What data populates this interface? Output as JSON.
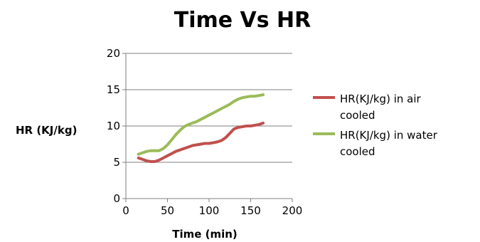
{
  "chart_data": {
    "type": "line",
    "title": "Time Vs HR",
    "xlabel": "Time (min)",
    "ylabel": "HR (KJ/kg)",
    "xlim": [
      0,
      200
    ],
    "ylim": [
      0,
      20
    ],
    "xticks": [
      0,
      50,
      100,
      150,
      200
    ],
    "yticks": [
      0,
      5,
      10,
      15,
      20
    ],
    "grid": "horizontal",
    "legend_position": "right",
    "series": [
      {
        "name": "HR(KJ/kg) in air cooled",
        "label_lines": [
          "HR(KJ/kg) in air",
          "cooled"
        ],
        "color": "#c0504d",
        "x": [
          15,
          20,
          25,
          30,
          35,
          40,
          45,
          50,
          55,
          60,
          65,
          70,
          75,
          80,
          85,
          90,
          95,
          100,
          105,
          110,
          115,
          120,
          125,
          130,
          135,
          140,
          145,
          150,
          155,
          160,
          165
        ],
        "y": [
          5.6,
          5.4,
          5.2,
          5.1,
          5.1,
          5.3,
          5.6,
          5.9,
          6.2,
          6.5,
          6.7,
          6.9,
          7.1,
          7.3,
          7.4,
          7.5,
          7.6,
          7.6,
          7.7,
          7.8,
          8.0,
          8.4,
          9.0,
          9.6,
          9.8,
          9.9,
          10.0,
          10.0,
          10.1,
          10.2,
          10.4
        ]
      },
      {
        "name": "HR(KJ/kg) in water cooled",
        "label_lines": [
          "HR(KJ/kg) in water",
          "cooled"
        ],
        "color": "#9bbb59",
        "x": [
          15,
          20,
          25,
          30,
          35,
          40,
          45,
          50,
          55,
          60,
          65,
          70,
          75,
          80,
          85,
          90,
          95,
          100,
          105,
          110,
          115,
          120,
          125,
          130,
          135,
          140,
          145,
          150,
          155,
          160,
          165
        ],
        "y": [
          6.1,
          6.3,
          6.5,
          6.6,
          6.6,
          6.6,
          6.9,
          7.4,
          8.1,
          8.8,
          9.4,
          9.9,
          10.2,
          10.4,
          10.6,
          10.9,
          11.2,
          11.5,
          11.8,
          12.1,
          12.4,
          12.7,
          13.0,
          13.4,
          13.7,
          13.9,
          14.0,
          14.1,
          14.1,
          14.2,
          14.3
        ]
      }
    ]
  }
}
